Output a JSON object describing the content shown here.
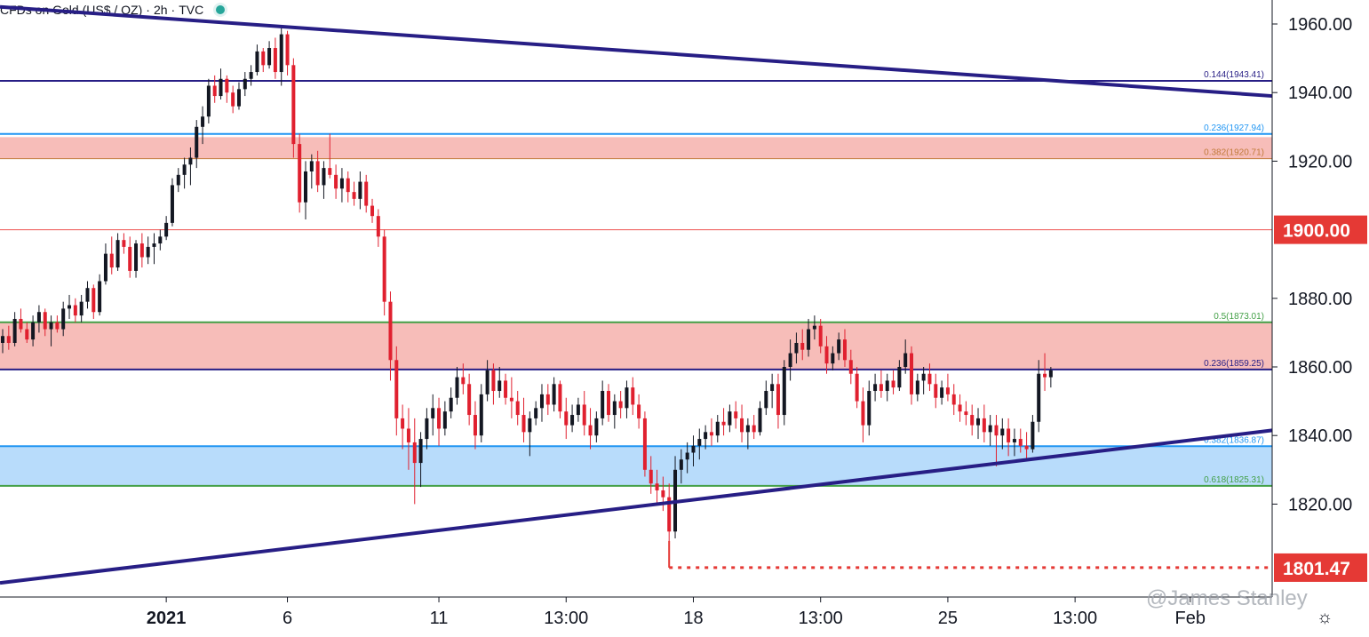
{
  "header": {
    "symbol": "CFDs on Gold (US$ / OZ)",
    "interval": "2h",
    "source": "TVC",
    "sep": "·"
  },
  "watermark": "@James Stanley",
  "settings_icon": "gear-icon",
  "colors": {
    "up": "#131722",
    "down": "#e0202f",
    "trendline": "#271e85",
    "fib_blue": "#2196f3",
    "fib_green": "#43a047",
    "fib_orange": "#c17a3a",
    "zone_red": "#f7b9b5",
    "zone_blue": "#b4dafb",
    "price_badge": "#e53935"
  },
  "chart_data": {
    "type": "candlestick",
    "title": "CFDs on Gold (US$ / OZ) · 2h · TVC",
    "ylim": [
      1795,
      1970
    ],
    "yticks": [
      "1960.00",
      "1940.00",
      "1920.00",
      "1880.00",
      "1860.00",
      "1840.00",
      "1820.00"
    ],
    "xticks": [
      {
        "label": "2021",
        "bar": 27,
        "bold": true
      },
      {
        "label": "6",
        "bar": 47
      },
      {
        "label": "11",
        "bar": 72
      },
      {
        "label": "13:00",
        "bar": 93
      },
      {
        "label": "18",
        "bar": 114
      },
      {
        "label": "13:00",
        "bar": 135
      },
      {
        "label": "25",
        "bar": 156
      },
      {
        "label": "13:00",
        "bar": 177
      },
      {
        "label": "Feb",
        "bar": 196
      }
    ],
    "bar_count": 199,
    "price_badges": [
      {
        "label": "1900.00",
        "value": 1900.0
      },
      {
        "label": "1801.47",
        "value": 1801.47
      }
    ],
    "zones": [
      {
        "from": 1920.71,
        "to": 1927.0,
        "color": "red"
      },
      {
        "from": 1859.25,
        "to": 1873.01,
        "color": "red"
      },
      {
        "from": 1825.31,
        "to": 1836.87,
        "color": "blue"
      }
    ],
    "levels": [
      {
        "value": 1943.41,
        "label": "0.144(1943.41)",
        "style": "trend",
        "full": true
      },
      {
        "value": 1927.94,
        "label": "0.236(1927.94)",
        "style": "blue"
      },
      {
        "value": 1920.71,
        "label": "0.382(1920.71)",
        "style": "orange"
      },
      {
        "value": 1900.0,
        "label": "",
        "style": "red-thin"
      },
      {
        "value": 1873.01,
        "label": "0.5(1873.01)",
        "style": "green"
      },
      {
        "value": 1859.25,
        "label": "0.236(1859.25)",
        "style": "trend"
      },
      {
        "value": 1836.87,
        "label": "0.382(1836.87)",
        "style": "blue"
      },
      {
        "value": 1825.31,
        "label": "0.618(1825.31)",
        "style": "green"
      }
    ],
    "trendlines": [
      {
        "from": {
          "bar": 0,
          "y": 1965.0
        },
        "to": {
          "bar": 199,
          "y": 1939.0
        }
      },
      {
        "from": {
          "bar": 0,
          "y": 1797.0
        },
        "to": {
          "bar": 199,
          "y": 1841.5
        }
      }
    ],
    "support_line": {
      "value": 1801.47,
      "from_bar": 110,
      "style": "dotted"
    },
    "candles": [
      [
        1867,
        1871,
        1864,
        1869
      ],
      [
        1869,
        1872,
        1865,
        1867
      ],
      [
        1867,
        1876,
        1866,
        1874
      ],
      [
        1874,
        1877,
        1870,
        1871
      ],
      [
        1871,
        1873,
        1867,
        1868
      ],
      [
        1868,
        1875,
        1866,
        1873
      ],
      [
        1873,
        1878,
        1870,
        1876
      ],
      [
        1876,
        1877,
        1869,
        1871
      ],
      [
        1871,
        1875,
        1866,
        1873
      ],
      [
        1873,
        1875,
        1870,
        1871
      ],
      [
        1871,
        1879,
        1869,
        1877
      ],
      [
        1877,
        1881,
        1874,
        1878
      ],
      [
        1878,
        1880,
        1873,
        1875
      ],
      [
        1875,
        1881,
        1873,
        1879
      ],
      [
        1879,
        1885,
        1877,
        1883
      ],
      [
        1883,
        1884,
        1874,
        1876
      ],
      [
        1876,
        1887,
        1875,
        1885
      ],
      [
        1885,
        1896,
        1884,
        1893
      ],
      [
        1893,
        1898,
        1887,
        1889
      ],
      [
        1889,
        1899,
        1888,
        1897
      ],
      [
        1897,
        1899,
        1893,
        1895
      ],
      [
        1895,
        1898,
        1886,
        1888
      ],
      [
        1888,
        1897,
        1886,
        1896
      ],
      [
        1896,
        1899,
        1889,
        1892
      ],
      [
        1892,
        1898,
        1890,
        1895
      ],
      [
        1895,
        1899,
        1890,
        1896
      ],
      [
        1896,
        1900,
        1894,
        1898
      ],
      [
        1898,
        1904,
        1897,
        1902
      ],
      [
        1902,
        1915,
        1901,
        1913
      ],
      [
        1913,
        1918,
        1911,
        1916
      ],
      [
        1916,
        1921,
        1912,
        1919
      ],
      [
        1919,
        1924,
        1913,
        1921
      ],
      [
        1921,
        1932,
        1918,
        1930
      ],
      [
        1930,
        1936,
        1925,
        1933
      ],
      [
        1933,
        1944,
        1931,
        1942
      ],
      [
        1942,
        1945,
        1937,
        1939
      ],
      [
        1939,
        1947,
        1938,
        1944
      ],
      [
        1944,
        1945,
        1937,
        1940
      ],
      [
        1940,
        1942,
        1934,
        1936
      ],
      [
        1936,
        1943,
        1935,
        1941
      ],
      [
        1941,
        1946,
        1939,
        1944
      ],
      [
        1944,
        1948,
        1942,
        1946
      ],
      [
        1946,
        1954,
        1945,
        1952
      ],
      [
        1952,
        1953,
        1946,
        1948
      ],
      [
        1948,
        1955,
        1947,
        1953
      ],
      [
        1953,
        1956,
        1944,
        1946
      ],
      [
        1946,
        1959,
        1942,
        1957
      ],
      [
        1957,
        1958,
        1945,
        1948
      ],
      [
        1948,
        1950,
        1921,
        1925
      ],
      [
        1925,
        1928,
        1905,
        1908
      ],
      [
        1908,
        1920,
        1903,
        1917
      ],
      [
        1917,
        1922,
        1912,
        1920
      ],
      [
        1920,
        1923,
        1911,
        1913
      ],
      [
        1913,
        1920,
        1909,
        1918
      ],
      [
        1918,
        1928,
        1915,
        1916
      ],
      [
        1916,
        1919,
        1909,
        1912
      ],
      [
        1912,
        1918,
        1908,
        1915
      ],
      [
        1915,
        1917,
        1908,
        1911
      ],
      [
        1911,
        1914,
        1907,
        1909
      ],
      [
        1909,
        1917,
        1906,
        1914
      ],
      [
        1914,
        1916,
        1905,
        1907
      ],
      [
        1907,
        1909,
        1902,
        1904
      ],
      [
        1904,
        1906,
        1895,
        1898
      ],
      [
        1898,
        1900,
        1875,
        1879
      ],
      [
        1879,
        1882,
        1856,
        1862
      ],
      [
        1862,
        1866,
        1840,
        1845
      ],
      [
        1845,
        1849,
        1836,
        1842
      ],
      [
        1842,
        1848,
        1830,
        1838
      ],
      [
        1838,
        1845,
        1820,
        1832
      ],
      [
        1832,
        1841,
        1825,
        1839
      ],
      [
        1839,
        1848,
        1836,
        1845
      ],
      [
        1845,
        1852,
        1840,
        1848
      ],
      [
        1848,
        1851,
        1837,
        1842
      ],
      [
        1842,
        1850,
        1840,
        1847
      ],
      [
        1847,
        1854,
        1845,
        1851
      ],
      [
        1851,
        1860,
        1849,
        1857
      ],
      [
        1857,
        1861,
        1852,
        1855
      ],
      [
        1855,
        1858,
        1843,
        1846
      ],
      [
        1846,
        1850,
        1836,
        1840
      ],
      [
        1840,
        1855,
        1838,
        1852
      ],
      [
        1852,
        1862,
        1850,
        1859
      ],
      [
        1859,
        1861,
        1849,
        1853
      ],
      [
        1853,
        1860,
        1851,
        1856
      ],
      [
        1856,
        1858,
        1849,
        1851
      ],
      [
        1851,
        1857,
        1845,
        1850
      ],
      [
        1850,
        1853,
        1843,
        1846
      ],
      [
        1846,
        1851,
        1838,
        1841
      ],
      [
        1841,
        1847,
        1834,
        1845
      ],
      [
        1845,
        1850,
        1843,
        1848
      ],
      [
        1848,
        1855,
        1844,
        1852
      ],
      [
        1852,
        1855,
        1846,
        1849
      ],
      [
        1849,
        1857,
        1847,
        1855
      ],
      [
        1855,
        1856,
        1845,
        1847
      ],
      [
        1847,
        1851,
        1839,
        1843
      ],
      [
        1843,
        1849,
        1841,
        1846
      ],
      [
        1846,
        1851,
        1844,
        1849
      ],
      [
        1849,
        1853,
        1840,
        1843
      ],
      [
        1843,
        1848,
        1836,
        1840
      ],
      [
        1840,
        1847,
        1838,
        1845
      ],
      [
        1845,
        1856,
        1843,
        1853
      ],
      [
        1853,
        1855,
        1844,
        1846
      ],
      [
        1846,
        1852,
        1842,
        1850
      ],
      [
        1850,
        1853,
        1845,
        1848
      ],
      [
        1848,
        1856,
        1845,
        1854
      ],
      [
        1854,
        1857,
        1846,
        1849
      ],
      [
        1849,
        1852,
        1842,
        1845
      ],
      [
        1845,
        1847,
        1828,
        1830
      ],
      [
        1830,
        1834,
        1823,
        1826
      ],
      [
        1826,
        1830,
        1820,
        1824
      ],
      [
        1824,
        1828,
        1818,
        1822
      ],
      [
        1822,
        1826,
        1808,
        1812
      ],
      [
        1812,
        1834,
        1810,
        1830
      ],
      [
        1830,
        1836,
        1826,
        1833
      ],
      [
        1833,
        1838,
        1829,
        1835
      ],
      [
        1835,
        1840,
        1831,
        1837
      ],
      [
        1837,
        1842,
        1833,
        1839
      ],
      [
        1839,
        1843,
        1836,
        1841
      ],
      [
        1841,
        1845,
        1837,
        1840
      ],
      [
        1840,
        1846,
        1838,
        1844
      ],
      [
        1844,
        1848,
        1840,
        1843
      ],
      [
        1843,
        1849,
        1841,
        1847
      ],
      [
        1847,
        1850,
        1842,
        1845
      ],
      [
        1845,
        1849,
        1838,
        1841
      ],
      [
        1841,
        1845,
        1836,
        1843
      ],
      [
        1843,
        1846,
        1839,
        1841
      ],
      [
        1841,
        1850,
        1840,
        1848
      ],
      [
        1848,
        1856,
        1846,
        1853
      ],
      [
        1853,
        1858,
        1848,
        1855
      ],
      [
        1855,
        1858,
        1842,
        1846
      ],
      [
        1846,
        1862,
        1843,
        1860
      ],
      [
        1860,
        1868,
        1856,
        1864
      ],
      [
        1864,
        1870,
        1861,
        1867
      ],
      [
        1867,
        1871,
        1862,
        1865
      ],
      [
        1865,
        1874,
        1863,
        1871
      ],
      [
        1871,
        1875,
        1868,
        1872
      ],
      [
        1872,
        1874,
        1864,
        1866
      ],
      [
        1866,
        1869,
        1858,
        1861
      ],
      [
        1861,
        1866,
        1859,
        1864
      ],
      [
        1864,
        1870,
        1862,
        1868
      ],
      [
        1868,
        1871,
        1860,
        1862
      ],
      [
        1862,
        1865,
        1855,
        1858
      ],
      [
        1858,
        1860,
        1848,
        1850
      ],
      [
        1850,
        1854,
        1838,
        1843
      ],
      [
        1843,
        1856,
        1840,
        1853
      ],
      [
        1853,
        1858,
        1850,
        1855
      ],
      [
        1855,
        1859,
        1851,
        1853
      ],
      [
        1853,
        1858,
        1850,
        1856
      ],
      [
        1856,
        1859,
        1852,
        1854
      ],
      [
        1854,
        1862,
        1853,
        1860
      ],
      [
        1860,
        1868,
        1858,
        1864
      ],
      [
        1864,
        1866,
        1849,
        1852
      ],
      [
        1852,
        1858,
        1850,
        1856
      ],
      [
        1856,
        1860,
        1852,
        1858
      ],
      [
        1858,
        1861,
        1853,
        1855
      ],
      [
        1855,
        1858,
        1848,
        1851
      ],
      [
        1851,
        1856,
        1849,
        1854
      ],
      [
        1854,
        1858,
        1850,
        1852
      ],
      [
        1852,
        1855,
        1846,
        1849
      ],
      [
        1849,
        1852,
        1844,
        1847
      ],
      [
        1847,
        1850,
        1843,
        1846
      ],
      [
        1846,
        1849,
        1840,
        1843
      ],
      [
        1843,
        1848,
        1839,
        1845
      ],
      [
        1845,
        1849,
        1838,
        1841
      ],
      [
        1841,
        1846,
        1837,
        1843
      ],
      [
        1843,
        1846,
        1831,
        1840
      ],
      [
        1840,
        1845,
        1836,
        1842
      ],
      [
        1842,
        1845,
        1834,
        1838
      ],
      [
        1838,
        1842,
        1834,
        1839
      ],
      [
        1839,
        1842,
        1835,
        1837
      ],
      [
        1837,
        1841,
        1833,
        1836
      ],
      [
        1836,
        1846,
        1835,
        1844
      ],
      [
        1844,
        1862,
        1841,
        1858
      ],
      [
        1858,
        1864,
        1853,
        1857
      ],
      [
        1857,
        1860,
        1854,
        1859
      ]
    ]
  }
}
